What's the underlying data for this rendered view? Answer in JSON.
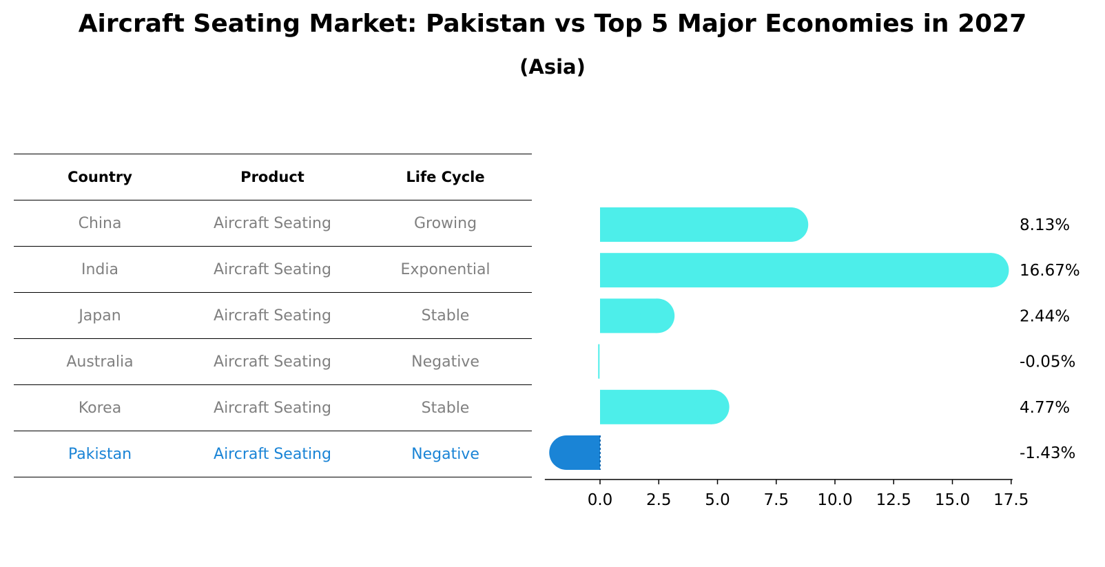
{
  "header": {
    "title": "Aircraft Seating Market: Pakistan vs Top 5 Major Economies in 2027",
    "subtitle": "(Asia)"
  },
  "table": {
    "columns": [
      "Country",
      "Product",
      "Life Cycle"
    ],
    "rows": [
      {
        "country": "China",
        "product": "Aircraft Seating",
        "life_cycle": "Growing"
      },
      {
        "country": "India",
        "product": "Aircraft Seating",
        "life_cycle": "Exponential"
      },
      {
        "country": "Japan",
        "product": "Aircraft Seating",
        "life_cycle": "Stable"
      },
      {
        "country": "Australia",
        "product": "Aircraft Seating",
        "life_cycle": "Negative"
      },
      {
        "country": "Korea",
        "product": "Aircraft Seating",
        "life_cycle": "Stable"
      },
      {
        "country": "Pakistan",
        "product": "Aircraft Seating",
        "life_cycle": "Negative"
      }
    ],
    "highlight_color": "#1a84d6",
    "text_color": "#808080"
  },
  "chart_data": {
    "type": "bar",
    "orientation": "horizontal",
    "categories": [
      "China",
      "India",
      "Japan",
      "Australia",
      "Korea",
      "Pakistan"
    ],
    "values": [
      8.13,
      16.67,
      2.44,
      -0.05,
      4.77,
      -1.43
    ],
    "value_labels": [
      "8.13%",
      "16.67%",
      "2.44%",
      "-0.05%",
      "4.77%",
      "-1.43%"
    ],
    "colors": [
      "#4deeea",
      "#4deeea",
      "#4deeea",
      "#4deeea",
      "#4deeea",
      "#1a84d6"
    ],
    "xlim": [
      -2.35,
      17.5
    ],
    "xticks": [
      0.0,
      2.5,
      5.0,
      7.5,
      10.0,
      12.5,
      15.0,
      17.5
    ],
    "xtick_labels": [
      "0.0",
      "2.5",
      "5.0",
      "7.5",
      "10.0",
      "12.5",
      "15.0",
      "17.5"
    ],
    "grid": false
  }
}
